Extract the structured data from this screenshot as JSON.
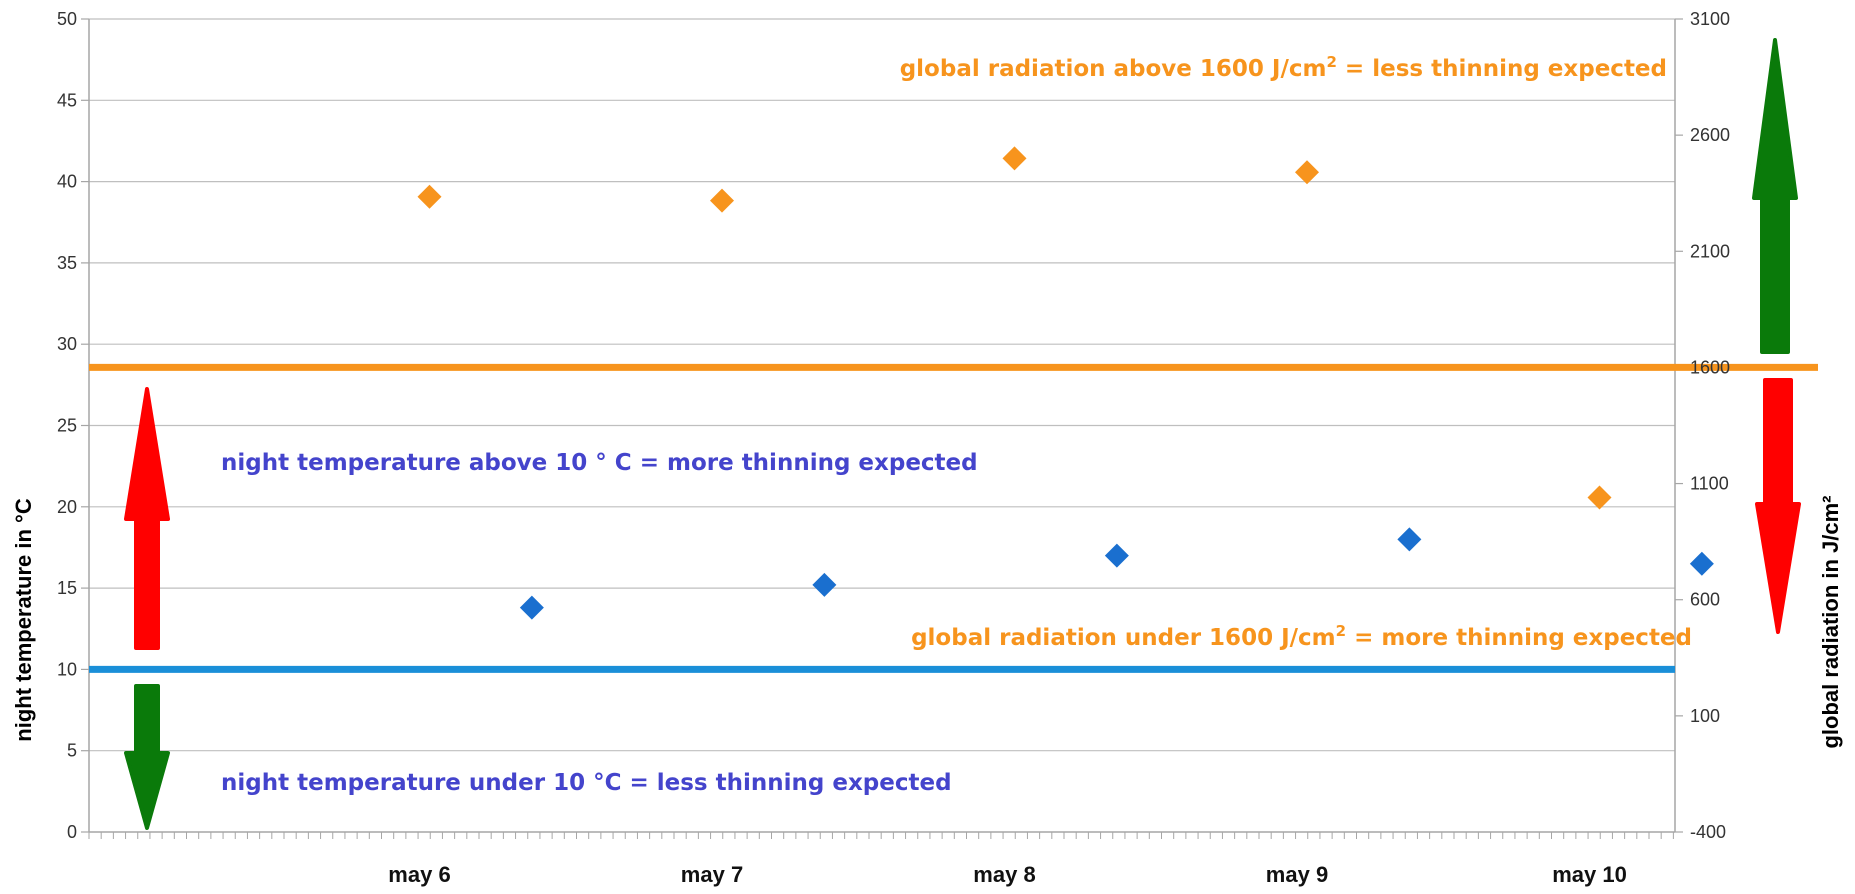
{
  "chart_data": {
    "type": "scatter",
    "categories": [
      "may 6",
      "may 7",
      "may 8",
      "may 9",
      "may 10"
    ],
    "y_left": {
      "label": "night temperature in °C",
      "min": 0,
      "max": 50,
      "ticks": [
        0,
        5,
        10,
        15,
        20,
        25,
        30,
        35,
        40,
        45,
        50
      ]
    },
    "y_right": {
      "label": "global radiation in  J/cm²",
      "min": -400,
      "max": 3100,
      "ticks": [
        -400,
        100,
        600,
        1100,
        1600,
        2100,
        2600,
        3100
      ]
    },
    "grid": true,
    "series": [
      {
        "axis": "right",
        "color": "#F7941D",
        "x": [
          1,
          2,
          3,
          4,
          5
        ],
        "values": [
          2335,
          2318,
          2500,
          2440,
          1040
        ]
      },
      {
        "axis": "left",
        "color": "#1A6FCF",
        "x": [
          1.35,
          2.35,
          3.35,
          4.35,
          5.35
        ],
        "values": [
          13.8,
          15.2,
          17.0,
          18.0,
          16.5
        ]
      }
    ],
    "thresholds": [
      {
        "axis": "right",
        "value": 1600,
        "color": "#F7941D"
      },
      {
        "axis": "left",
        "value": 10,
        "color": "#1A8FD8"
      }
    ],
    "annotations": [
      {
        "id": "rad-above",
        "color": "#F7941D",
        "parts": [
          "global radiation above 1600 J/cm",
          "2",
          " = less thinning expected"
        ]
      },
      {
        "id": "temp-above",
        "color": "#4444CC",
        "parts": [
          "night temperature above 10 ° C = more thinning expected"
        ]
      },
      {
        "id": "rad-under",
        "color": "#F7941D",
        "parts": [
          "global radiation under 1600  J/cm",
          "2",
          " = more thinning expected"
        ]
      },
      {
        "id": "temp-under",
        "color": "#4444CC",
        "parts": [
          "night temperature under 10 °C = less thinning expected"
        ]
      }
    ],
    "arrows": [
      {
        "id": "temp-up-arrow",
        "direction": "up",
        "color": "red"
      },
      {
        "id": "temp-down-arrow",
        "direction": "down",
        "color": "green"
      },
      {
        "id": "radiation-up-arrow",
        "direction": "up",
        "color": "green"
      },
      {
        "id": "radiation-down-arrow",
        "direction": "down",
        "color": "red"
      }
    ],
    "colors": {
      "grid": "#BFBFBF",
      "axis": "#A6A6A6",
      "arrow_red": "#FF0000",
      "arrow_green": "#0A7A0A"
    }
  }
}
